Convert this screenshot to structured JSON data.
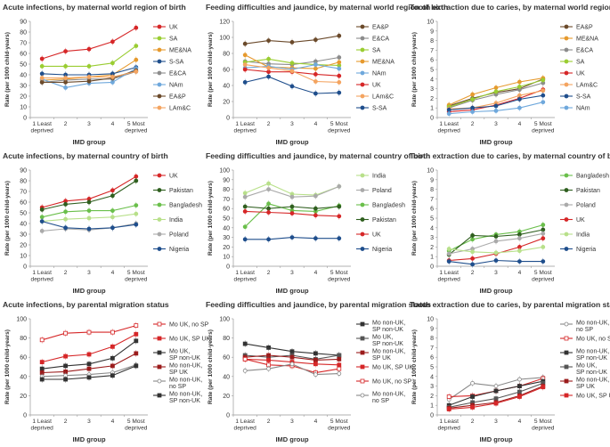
{
  "figure": {
    "xlabel_common": "IMD group",
    "ylabel_common": "Rate (per 1000 child-years)",
    "categories": [
      "1 Least deprived",
      "2",
      "3",
      "4",
      "5 Most deprived"
    ]
  },
  "chart_data": [
    {
      "id": "p1",
      "type": "line",
      "title": "Acute infections, by maternal world region of birth",
      "xlabel": "IMD group",
      "ylabel": "Rate (per 1000 child-years)",
      "categories": [
        "1 Least deprived",
        "2",
        "3",
        "4",
        "5 Most deprived"
      ],
      "ylim": [
        0,
        90
      ],
      "yticks": [
        0,
        10,
        20,
        30,
        40,
        50,
        60,
        70,
        80,
        90
      ],
      "series": [
        {
          "name": "UK",
          "color": "#d62728",
          "marker": "circle",
          "values": [
            55,
            62,
            64,
            71,
            84
          ]
        },
        {
          "name": "SA",
          "color": "#9acd32",
          "marker": "circle",
          "values": [
            48,
            48,
            48,
            51,
            67
          ]
        },
        {
          "name": "ME&NA",
          "color": "#e69a2e",
          "marker": "circle",
          "values": [
            35,
            36,
            38,
            40,
            54
          ]
        },
        {
          "name": "S-SA",
          "color": "#1f4e8c",
          "marker": "circle",
          "values": [
            41,
            40,
            40,
            41,
            47
          ]
        },
        {
          "name": "E&CA",
          "color": "#8c8c8c",
          "marker": "circle",
          "values": [
            33,
            35,
            36,
            36,
            43
          ]
        },
        {
          "name": "NAm",
          "color": "#6fa8dc",
          "marker": "circle",
          "values": [
            36,
            28,
            32,
            33,
            46
          ]
        },
        {
          "name": "EA&P",
          "color": "#6b4a2b",
          "marker": "circle",
          "values": [
            33,
            33,
            34,
            37,
            44
          ]
        },
        {
          "name": "LAm&C",
          "color": "#f4a460",
          "marker": "circle",
          "values": [
            37,
            37,
            38,
            38,
            43
          ]
        }
      ]
    },
    {
      "id": "p2",
      "type": "line",
      "title": "Feeding difficulties and jaundice, by maternal world region of birth",
      "xlabel": "IMD group",
      "ylabel": "Rate (per 1000 child-years)",
      "categories": [
        "1 Least deprived",
        "2",
        "3",
        "4",
        "5 Most deprived"
      ],
      "ylim": [
        0,
        120
      ],
      "yticks": [
        0,
        20,
        40,
        60,
        80,
        100,
        120
      ],
      "series": [
        {
          "name": "EA&P",
          "color": "#6b4a2b",
          "marker": "circle",
          "values": [
            92,
            96,
            94,
            97,
            102
          ]
        },
        {
          "name": "E&CA",
          "color": "#8c8c8c",
          "marker": "circle",
          "values": [
            70,
            67,
            66,
            70,
            75
          ]
        },
        {
          "name": "SA",
          "color": "#9acd32",
          "marker": "circle",
          "values": [
            69,
            73,
            68,
            66,
            65
          ]
        },
        {
          "name": "ME&NA",
          "color": "#e69a2e",
          "marker": "circle",
          "values": [
            78,
            63,
            62,
            61,
            69
          ]
        },
        {
          "name": "NAm",
          "color": "#6fa8dc",
          "marker": "circle",
          "values": [
            62,
            64,
            60,
            66,
            61
          ]
        },
        {
          "name": "UK",
          "color": "#d62728",
          "marker": "circle",
          "values": [
            60,
            57,
            57,
            54,
            52
          ]
        },
        {
          "name": "LAm&C",
          "color": "#f4a460",
          "marker": "circle",
          "values": [
            66,
            62,
            58,
            45,
            44
          ]
        },
        {
          "name": "S-SA",
          "color": "#1f4e8c",
          "marker": "circle",
          "values": [
            44,
            51,
            39,
            30,
            31
          ]
        }
      ]
    },
    {
      "id": "p3",
      "type": "line",
      "title": "Tooth extraction due to caries, by maternal world region of birth",
      "xlabel": "IMD group",
      "ylabel": "Rate (per 1000 child-years)",
      "categories": [
        "1 Least deprived",
        "2",
        "3",
        "4",
        "5 Most deprived"
      ],
      "ylim": [
        0,
        10
      ],
      "yticks": [
        0,
        1,
        2,
        3,
        4,
        5,
        6,
        7,
        8,
        9,
        10
      ],
      "series": [
        {
          "name": "EA&P",
          "color": "#6b4a2b",
          "marker": "circle",
          "values": [
            1.2,
            2.0,
            2.6,
            3.0,
            4.0
          ]
        },
        {
          "name": "ME&NA",
          "color": "#e69a2e",
          "marker": "circle",
          "values": [
            1.3,
            2.4,
            3.1,
            3.7,
            4.1
          ]
        },
        {
          "name": "E&CA",
          "color": "#8c8c8c",
          "marker": "circle",
          "values": [
            1.0,
            1.8,
            2.4,
            2.9,
            3.6
          ]
        },
        {
          "name": "SA",
          "color": "#9acd32",
          "marker": "circle",
          "values": [
            1.1,
            1.9,
            2.7,
            3.2,
            3.9
          ]
        },
        {
          "name": "UK",
          "color": "#d62728",
          "marker": "circle",
          "values": [
            0.6,
            0.8,
            1.3,
            2.0,
            2.9
          ]
        },
        {
          "name": "LAm&C",
          "color": "#f4a460",
          "marker": "circle",
          "values": [
            0.9,
            1.0,
            1.5,
            2.3,
            2.8
          ]
        },
        {
          "name": "S-SA",
          "color": "#1f4e8c",
          "marker": "circle",
          "values": [
            0.8,
            1.0,
            1.2,
            1.9,
            2.3
          ]
        },
        {
          "name": "NAm",
          "color": "#6fa8dc",
          "marker": "circle",
          "values": [
            0.4,
            0.6,
            0.7,
            1.0,
            1.6
          ]
        }
      ]
    },
    {
      "id": "p4",
      "type": "line",
      "title": "Acute infections, by maternal country of birth",
      "xlabel": "IMD group",
      "ylabel": "Rate (per 1000 child-years)",
      "categories": [
        "1 Least deprived",
        "2",
        "3",
        "4",
        "5 Most deprived"
      ],
      "ylim": [
        0,
        90
      ],
      "yticks": [
        0,
        10,
        20,
        30,
        40,
        50,
        60,
        70,
        80,
        90
      ],
      "series": [
        {
          "name": "UK",
          "color": "#d62728",
          "marker": "circle",
          "values": [
            55,
            61,
            63,
            71,
            84
          ]
        },
        {
          "name": "Pakistan",
          "color": "#2f5f1f",
          "marker": "circle",
          "values": [
            53,
            58,
            60,
            66,
            80
          ]
        },
        {
          "name": "Bangladesh",
          "color": "#6abf4b",
          "marker": "circle",
          "values": [
            46,
            51,
            52,
            52,
            57
          ]
        },
        {
          "name": "India",
          "color": "#b8e08a",
          "marker": "circle",
          "values": [
            42,
            44,
            45,
            46,
            49
          ]
        },
        {
          "name": "Poland",
          "color": "#aaaaaa",
          "marker": "circle",
          "values": [
            33,
            35,
            34,
            36,
            40
          ]
        },
        {
          "name": "Nigeria",
          "color": "#1f4e8c",
          "marker": "circle",
          "values": [
            42,
            36,
            35,
            36,
            39
          ]
        }
      ]
    },
    {
      "id": "p5",
      "type": "line",
      "title": "Feeding difficulties and jaundice, by maternal country of birth",
      "xlabel": "IMD group",
      "ylabel": "Rate (per 1000 child-years)",
      "categories": [
        "1 Least deprived",
        "2",
        "3",
        "4",
        "5 Most deprived"
      ],
      "ylim": [
        0,
        100
      ],
      "yticks": [
        0,
        10,
        20,
        30,
        40,
        50,
        60,
        70,
        80,
        90,
        100
      ],
      "series": [
        {
          "name": "India",
          "color": "#b8e08a",
          "marker": "circle",
          "values": [
            76,
            86,
            75,
            74,
            83
          ]
        },
        {
          "name": "Poland",
          "color": "#aaaaaa",
          "marker": "circle",
          "values": [
            72,
            80,
            72,
            73,
            83
          ]
        },
        {
          "name": "Bangladesh",
          "color": "#6abf4b",
          "marker": "circle",
          "values": [
            41,
            65,
            58,
            57,
            63
          ]
        },
        {
          "name": "Pakistan",
          "color": "#2f5f1f",
          "marker": "circle",
          "values": [
            62,
            60,
            62,
            60,
            62
          ]
        },
        {
          "name": "UK",
          "color": "#d62728",
          "marker": "circle",
          "values": [
            57,
            56,
            55,
            53,
            52
          ]
        },
        {
          "name": "Nigeria",
          "color": "#1f4e8c",
          "marker": "circle",
          "values": [
            28,
            28,
            30,
            29,
            29
          ]
        }
      ]
    },
    {
      "id": "p6",
      "type": "line",
      "title": "Tooth extraction due to caries, by maternal country of birth",
      "xlabel": "IMD group",
      "ylabel": "Rate (per 1000 child-years)",
      "categories": [
        "1 Least deprived",
        "2",
        "3",
        "4",
        "5 Most deprived"
      ],
      "ylim": [
        0,
        10
      ],
      "yticks": [
        0,
        1,
        2,
        3,
        4,
        5,
        6,
        7,
        8,
        9,
        10
      ],
      "series": [
        {
          "name": "Bangladesh",
          "color": "#6abf4b",
          "marker": "circle",
          "values": [
            1.6,
            2.8,
            3.3,
            3.6,
            4.3
          ]
        },
        {
          "name": "Pakistan",
          "color": "#2f5f1f",
          "marker": "circle",
          "values": [
            1.2,
            3.2,
            3.1,
            3.3,
            3.8
          ]
        },
        {
          "name": "Poland",
          "color": "#aaaaaa",
          "marker": "circle",
          "values": [
            1.3,
            1.8,
            2.6,
            2.9,
            3.4
          ]
        },
        {
          "name": "UK",
          "color": "#d62728",
          "marker": "circle",
          "values": [
            0.6,
            0.8,
            1.3,
            2.0,
            2.9
          ]
        },
        {
          "name": "India",
          "color": "#b8e08a",
          "marker": "circle",
          "values": [
            1.8,
            1.5,
            1.4,
            1.6,
            2.0
          ]
        },
        {
          "name": "Nigeria",
          "color": "#1f4e8c",
          "marker": "circle",
          "values": [
            0.5,
            0.2,
            0.6,
            0.5,
            0.5
          ]
        }
      ]
    },
    {
      "id": "p7",
      "type": "line",
      "title": "Acute infections, by parental migration status",
      "xlabel": "IMD group",
      "ylabel": "Rate (per 1000 child-years)",
      "categories": [
        "1 Least deprived",
        "2",
        "3",
        "4",
        "5 Most deprived"
      ],
      "ylim": [
        0,
        100
      ],
      "yticks": [
        0,
        20,
        40,
        60,
        80,
        100
      ],
      "series": [
        {
          "name": "Mo UK, no SP",
          "color": "#d62728",
          "marker": "square-open",
          "values": [
            78,
            85,
            86,
            86,
            93
          ]
        },
        {
          "name": "Mo UK, SP UK",
          "color": "#d62728",
          "marker": "square",
          "values": [
            55,
            61,
            63,
            71,
            84
          ]
        },
        {
          "name": "Mo UK, SP non-UK",
          "color": "#333333",
          "marker": "square",
          "values": [
            48,
            51,
            53,
            59,
            77
          ]
        },
        {
          "name": "Mo non-UK, SP UK",
          "color": "#9b1c1c",
          "marker": "square",
          "values": [
            44,
            45,
            48,
            51,
            64
          ]
        },
        {
          "name": "Mo non-UK, no SP",
          "color": "#888888",
          "marker": "circle-open",
          "values": [
            40,
            41,
            42,
            44,
            52
          ]
        },
        {
          "name": "Mo non-UK, SP non-UK",
          "color": "#333333",
          "marker": "square",
          "values": [
            37,
            37,
            39,
            41,
            51
          ]
        }
      ]
    },
    {
      "id": "p8",
      "type": "line",
      "title": "Feeding difficulties and jaundice, by parental migration status",
      "xlabel": "IMD group",
      "ylabel": "Rate (per 1000 child-years)",
      "categories": [
        "1 Least deprived",
        "2",
        "3",
        "4",
        "5 Most deprived"
      ],
      "ylim": [
        0,
        100
      ],
      "yticks": [
        0,
        20,
        40,
        60,
        80,
        100
      ],
      "series": [
        {
          "name": "Mo non-UK, SP non-UK",
          "color": "#333333",
          "marker": "square",
          "values": [
            74,
            70,
            66,
            64,
            62
          ]
        },
        {
          "name": "Mo UK, SP non-UK",
          "color": "#555555",
          "marker": "square",
          "values": [
            62,
            60,
            62,
            58,
            62
          ]
        },
        {
          "name": "Mo non-UK, SP UK",
          "color": "#9b1c1c",
          "marker": "square",
          "values": [
            60,
            62,
            60,
            57,
            58
          ]
        },
        {
          "name": "Mo UK, SP UK",
          "color": "#d62728",
          "marker": "square",
          "values": [
            58,
            57,
            55,
            53,
            52
          ]
        },
        {
          "name": "Mo UK, no SP",
          "color": "#d62728",
          "marker": "square-open",
          "values": [
            58,
            52,
            51,
            44,
            48
          ]
        },
        {
          "name": "Mo non-UK, no SP",
          "color": "#888888",
          "marker": "circle-open",
          "values": [
            46,
            48,
            53,
            42,
            43
          ]
        }
      ]
    },
    {
      "id": "p9",
      "type": "line",
      "title": "Tooth extraction due to caries, by parental migration status",
      "xlabel": "IMD group",
      "ylabel": "Rate (per 1000 child-years)",
      "categories": [
        "1 Least deprived",
        "2",
        "3",
        "4",
        "5 Most deprived"
      ],
      "ylim": [
        0,
        10
      ],
      "yticks": [
        0,
        1,
        2,
        3,
        4,
        5,
        6,
        7,
        8,
        9,
        10
      ],
      "series": [
        {
          "name": "Mo non-UK, no SP",
          "color": "#888888",
          "marker": "circle-open",
          "values": [
            1.6,
            3.3,
            3.0,
            3.7,
            3.9
          ]
        },
        {
          "name": "Mo UK, no SP",
          "color": "#d62728",
          "marker": "square-open",
          "values": [
            1.9,
            2.0,
            2.5,
            3.0,
            3.8
          ]
        },
        {
          "name": "Mo non-UK, SP non-UK",
          "color": "#333333",
          "marker": "square",
          "values": [
            1.0,
            1.9,
            2.5,
            3.0,
            3.5
          ]
        },
        {
          "name": "Mo UK, SP non-UK",
          "color": "#555555",
          "marker": "square",
          "values": [
            0.8,
            1.3,
            1.7,
            2.4,
            3.3
          ]
        },
        {
          "name": "Mo non-UK, SP UK",
          "color": "#9b1c1c",
          "marker": "square",
          "values": [
            0.7,
            1.0,
            1.3,
            2.0,
            3.0
          ]
        },
        {
          "name": "Mo UK, SP UK",
          "color": "#d62728",
          "marker": "square",
          "values": [
            0.6,
            0.8,
            1.2,
            1.9,
            2.9
          ]
        }
      ]
    }
  ]
}
